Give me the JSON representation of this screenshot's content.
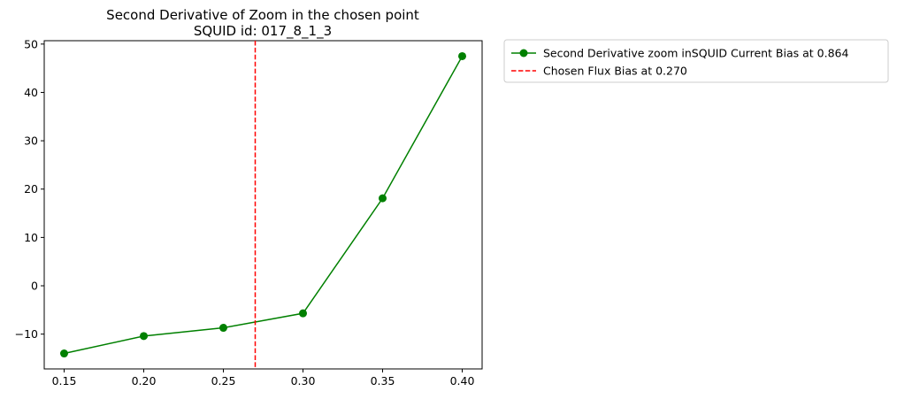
{
  "chart_data": {
    "type": "line",
    "title_line1": "Second Derivative of Zoom in the chosen point",
    "title_line2": "SQUID id: 017_8_1_3",
    "xlabel": "",
    "ylabel": "",
    "xlim": [
      0.1375,
      0.4125
    ],
    "ylim": [
      -17.2,
      50.7
    ],
    "x_ticks": [
      0.15,
      0.2,
      0.25,
      0.3,
      0.35,
      0.4
    ],
    "x_tick_labels": [
      "0.15",
      "0.20",
      "0.25",
      "0.30",
      "0.35",
      "0.40"
    ],
    "y_ticks": [
      -10,
      0,
      10,
      20,
      30,
      40,
      50
    ],
    "y_tick_labels": [
      "−10",
      "0",
      "10",
      "20",
      "30",
      "40",
      "50"
    ],
    "grid": false,
    "legend_placement": "outside-upper-right",
    "series": [
      {
        "name": "Second Derivative zoom inSQUID Current Bias at 0.864",
        "color": "#008000",
        "marker": "circle",
        "x": [
          0.15,
          0.2,
          0.25,
          0.3,
          0.35,
          0.4
        ],
        "y": [
          -14.0,
          -10.4,
          -8.7,
          -5.7,
          18.1,
          47.5
        ]
      }
    ],
    "vlines": [
      {
        "name": "Chosen Flux Bias at 0.270",
        "color": "#ff0000",
        "style": "dashed",
        "x": 0.27
      }
    ]
  }
}
